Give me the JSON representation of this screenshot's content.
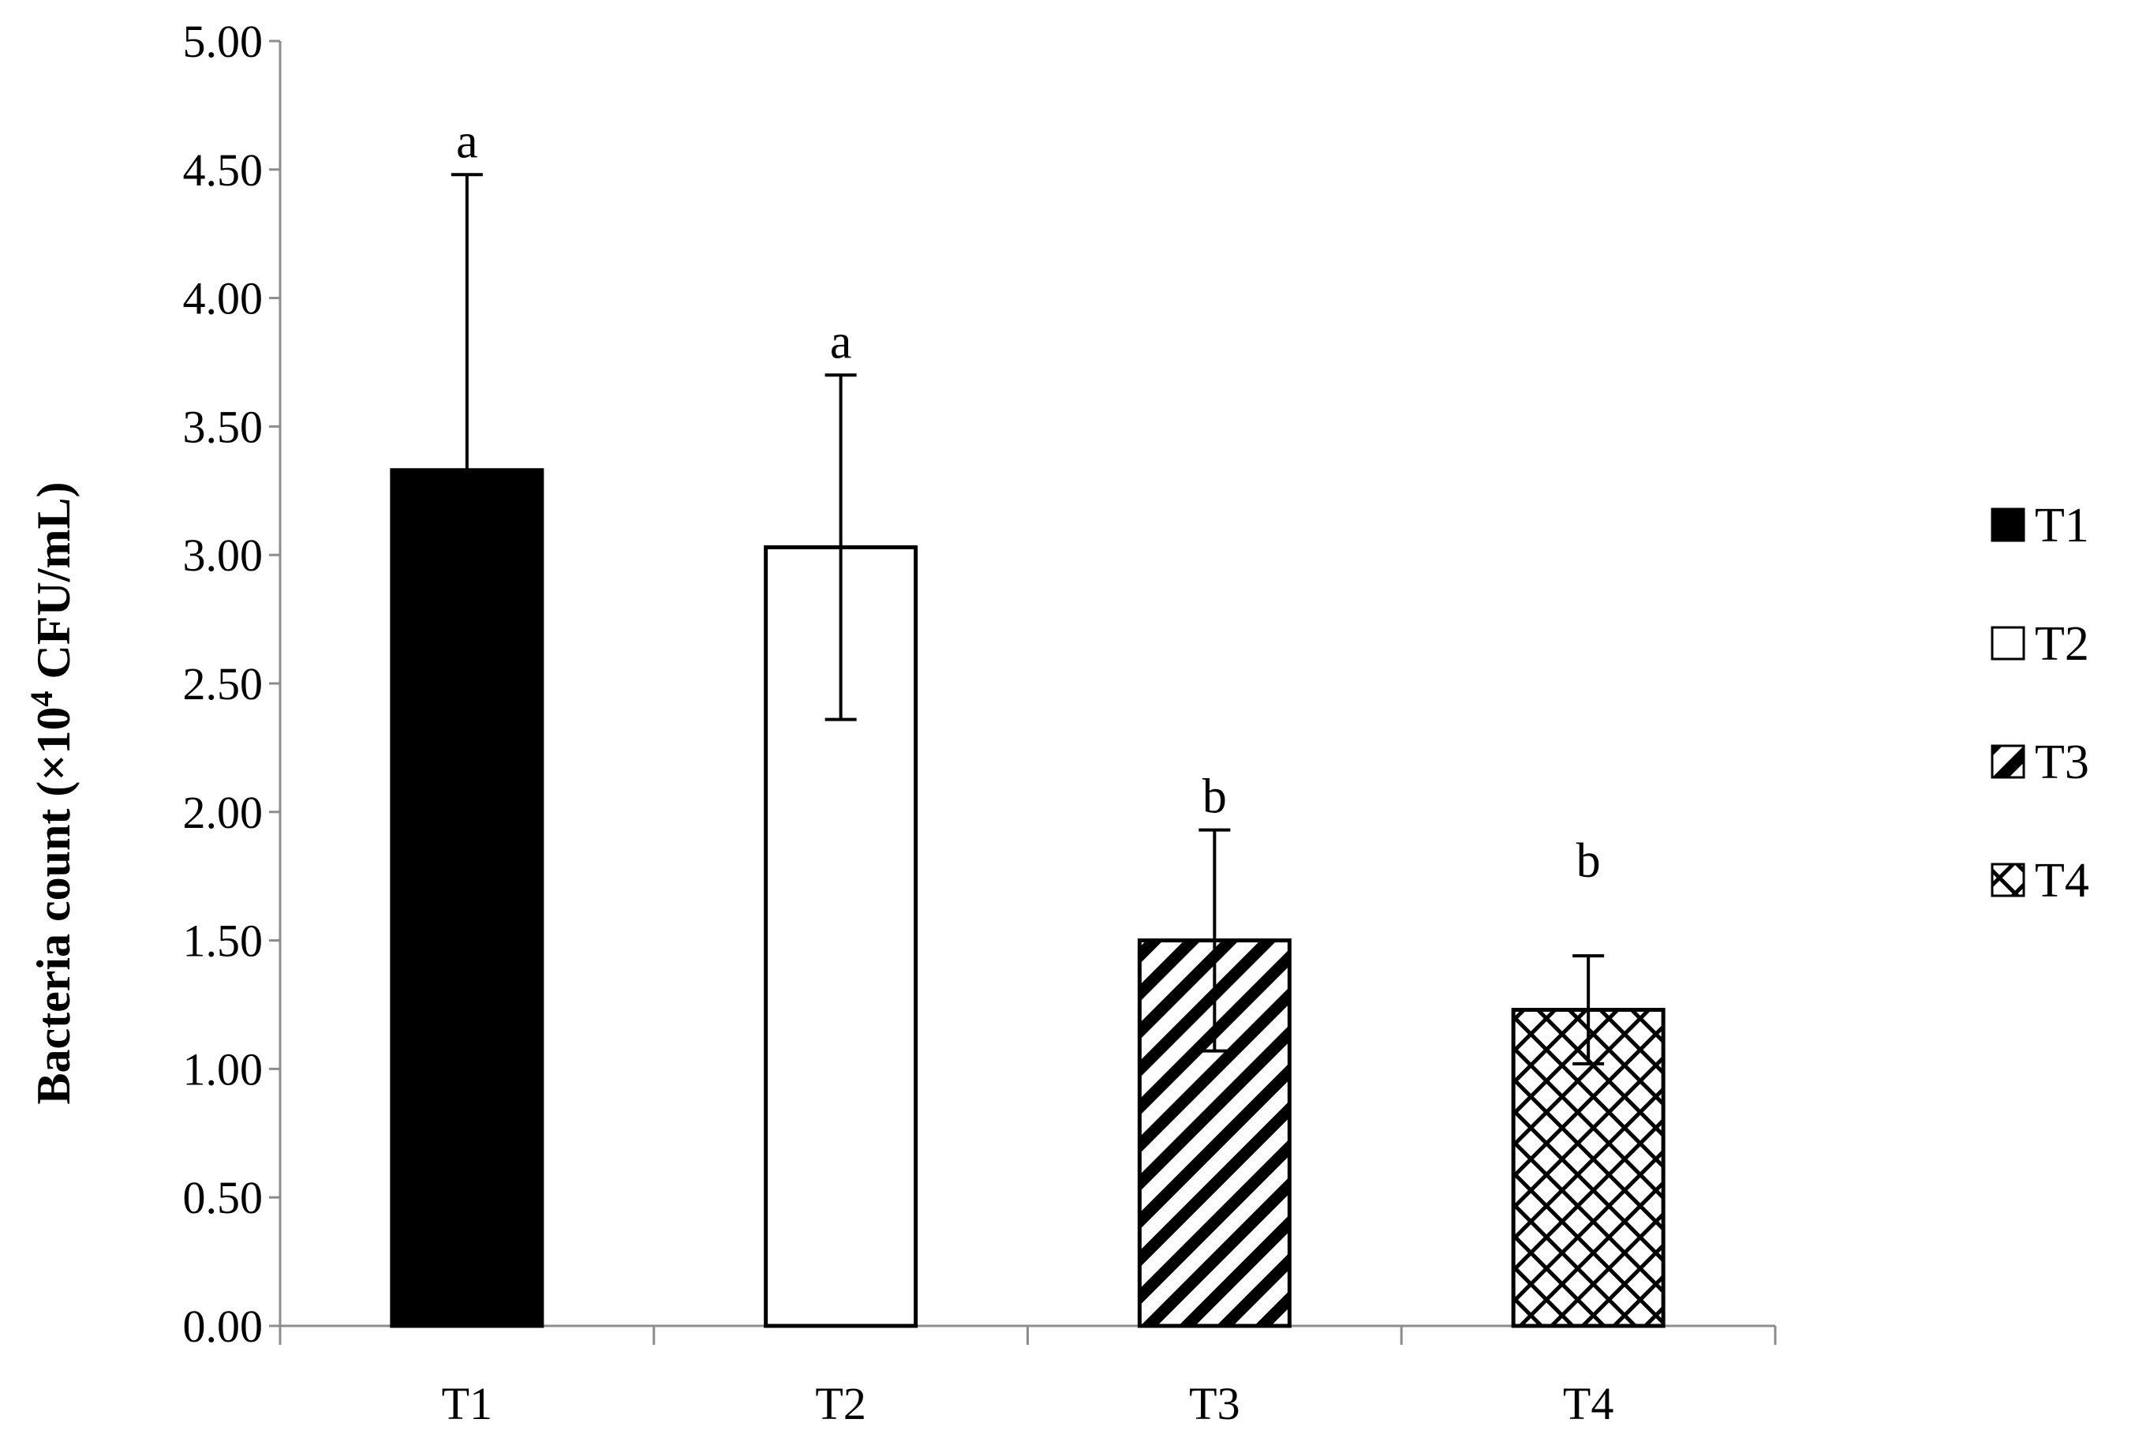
{
  "chart_data": {
    "type": "bar",
    "categories": [
      "T1",
      "T2",
      "T3",
      "T4"
    ],
    "values": [
      3.33,
      3.03,
      1.5,
      1.23
    ],
    "error": [
      1.15,
      0.67,
      0.43,
      0.21
    ],
    "significance": [
      "a",
      "a",
      "b",
      "b"
    ],
    "title": "",
    "xlabel": "",
    "ylabel_main": "Bacteria count (×10",
    "ylabel_sup": "4",
    "ylabel_tail": " CFU/mL)",
    "ylim": [
      0,
      5
    ],
    "yticks": [
      "0.00",
      "0.50",
      "1.00",
      "1.50",
      "2.00",
      "2.50",
      "3.00",
      "3.50",
      "4.00",
      "4.50",
      "5.00"
    ],
    "grid": false,
    "legend": {
      "placement": "right",
      "entries": [
        "T1",
        "T2",
        "T3",
        "T4"
      ]
    },
    "fills": [
      "solid-black",
      "white",
      "diagonal-hatch",
      "crosshatch"
    ]
  }
}
